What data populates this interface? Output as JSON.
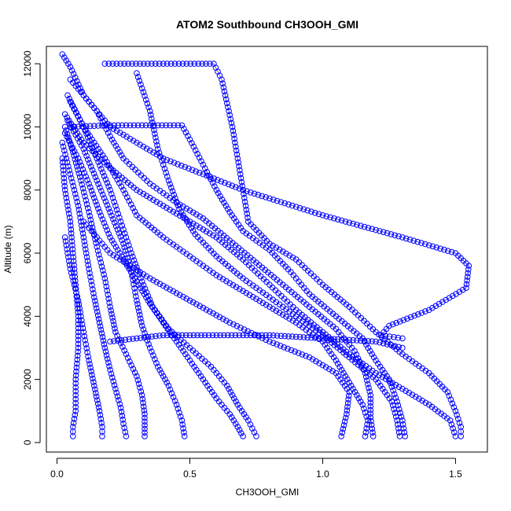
{
  "chart_data": {
    "type": "scatter",
    "title": "ATOM2 Southbound CH3OOH_GMI",
    "xlabel": "CH3OOH_GMI",
    "ylabel": "Altitude (m)",
    "xlim": [
      -0.04,
      1.62
    ],
    "ylim": [
      -300,
      12550
    ],
    "x_ticks": [
      0.0,
      0.5,
      1.0,
      1.5
    ],
    "x_tick_labels": [
      "0.0",
      "0.5",
      "1.0",
      "1.5"
    ],
    "y_ticks": [
      0,
      2000,
      4000,
      6000,
      8000,
      10000,
      12000
    ],
    "y_tick_labels": [
      "0",
      "2000",
      "4000",
      "6000",
      "8000",
      "10000",
      "12000"
    ],
    "marker": "open-circle",
    "series_color": "#0000ff",
    "grid": false,
    "legend": "none",
    "profiles": [
      {
        "points": [
          [
            0.02,
            12300
          ],
          [
            0.05,
            11900
          ],
          [
            0.1,
            11000
          ],
          [
            0.2,
            10000
          ],
          [
            0.4,
            9000
          ],
          [
            0.7,
            8000
          ],
          [
            1.0,
            7200
          ],
          [
            1.3,
            6500
          ],
          [
            1.5,
            6000
          ],
          [
            1.55,
            5600
          ],
          [
            1.54,
            4900
          ],
          [
            1.4,
            4200
          ],
          [
            1.25,
            3700
          ],
          [
            1.22,
            3400
          ],
          [
            1.3,
            3300
          ]
        ]
      },
      {
        "points": [
          [
            0.18,
            12000
          ],
          [
            0.4,
            12000
          ],
          [
            0.59,
            12000
          ],
          [
            0.62,
            11500
          ],
          [
            0.66,
            10000
          ],
          [
            0.68,
            9000
          ],
          [
            0.7,
            8000
          ],
          [
            0.72,
            7000
          ],
          [
            0.8,
            6300
          ],
          [
            0.9,
            5800
          ],
          [
            1.0,
            5000
          ],
          [
            1.1,
            4300
          ],
          [
            1.2,
            3500
          ],
          [
            1.3,
            2800
          ],
          [
            1.4,
            2200
          ],
          [
            1.47,
            1600
          ],
          [
            1.5,
            1000
          ],
          [
            1.52,
            500
          ],
          [
            1.52,
            200
          ]
        ]
      },
      {
        "points": [
          [
            0.05,
            10000
          ],
          [
            0.2,
            10050
          ],
          [
            0.47,
            10050
          ],
          [
            0.5,
            9600
          ],
          [
            0.55,
            8800
          ],
          [
            0.6,
            8000
          ],
          [
            0.65,
            7300
          ],
          [
            0.7,
            6700
          ],
          [
            0.8,
            6100
          ],
          [
            0.88,
            5400
          ],
          [
            0.95,
            4700
          ],
          [
            1.05,
            4000
          ],
          [
            1.15,
            3300
          ],
          [
            1.2,
            2600
          ],
          [
            1.25,
            2000
          ],
          [
            1.28,
            1300
          ],
          [
            1.3,
            700
          ],
          [
            1.31,
            200
          ]
        ]
      },
      {
        "points": [
          [
            0.03,
            10400
          ],
          [
            0.1,
            9500
          ],
          [
            0.2,
            8700
          ],
          [
            0.3,
            8000
          ],
          [
            0.4,
            7500
          ],
          [
            0.5,
            7000
          ],
          [
            0.6,
            6500
          ],
          [
            0.7,
            5800
          ],
          [
            0.8,
            5000
          ],
          [
            0.9,
            4200
          ],
          [
            1.0,
            3500
          ],
          [
            1.1,
            2800
          ],
          [
            1.2,
            2200
          ],
          [
            1.3,
            1700
          ],
          [
            1.4,
            1200
          ],
          [
            1.48,
            700
          ],
          [
            1.5,
            200
          ]
        ]
      },
      {
        "points": [
          [
            0.05,
            11500
          ],
          [
            0.15,
            10500
          ],
          [
            0.2,
            9700
          ],
          [
            0.25,
            9000
          ],
          [
            0.35,
            8200
          ],
          [
            0.45,
            7600
          ],
          [
            0.55,
            7100
          ],
          [
            0.65,
            6400
          ],
          [
            0.75,
            5700
          ],
          [
            0.85,
            5000
          ],
          [
            0.95,
            4300
          ],
          [
            1.05,
            3600
          ],
          [
            1.12,
            2900
          ],
          [
            1.16,
            2200
          ],
          [
            1.18,
            1500
          ],
          [
            1.18,
            800
          ],
          [
            1.19,
            200
          ]
        ]
      },
      {
        "points": [
          [
            0.04,
            11000
          ],
          [
            0.1,
            10000
          ],
          [
            0.18,
            9000
          ],
          [
            0.25,
            8000
          ],
          [
            0.3,
            7200
          ],
          [
            0.4,
            6500
          ],
          [
            0.5,
            5900
          ],
          [
            0.6,
            5300
          ],
          [
            0.7,
            4800
          ],
          [
            0.8,
            4300
          ],
          [
            0.9,
            3800
          ],
          [
            1.0,
            3200
          ],
          [
            1.05,
            2600
          ],
          [
            1.1,
            1900
          ],
          [
            1.15,
            1200
          ],
          [
            1.17,
            700
          ],
          [
            1.16,
            200
          ]
        ]
      },
      {
        "points": [
          [
            0.03,
            9800
          ],
          [
            0.08,
            9000
          ],
          [
            0.12,
            8200
          ],
          [
            0.16,
            7300
          ],
          [
            0.2,
            6500
          ],
          [
            0.25,
            5800
          ],
          [
            0.3,
            5100
          ],
          [
            0.35,
            4400
          ],
          [
            0.4,
            3800
          ],
          [
            0.45,
            3200
          ],
          [
            0.5,
            2600
          ],
          [
            0.55,
            2000
          ],
          [
            0.6,
            1400
          ],
          [
            0.65,
            900
          ],
          [
            0.68,
            500
          ],
          [
            0.7,
            200
          ]
        ]
      },
      {
        "points": [
          [
            0.02,
            9500
          ],
          [
            0.05,
            8500
          ],
          [
            0.08,
            7500
          ],
          [
            0.1,
            6500
          ],
          [
            0.12,
            5500
          ],
          [
            0.14,
            4600
          ],
          [
            0.16,
            3800
          ],
          [
            0.18,
            3000
          ],
          [
            0.2,
            2300
          ],
          [
            0.22,
            1700
          ],
          [
            0.24,
            1100
          ],
          [
            0.25,
            600
          ],
          [
            0.26,
            200
          ]
        ]
      },
      {
        "points": [
          [
            0.04,
            10200
          ],
          [
            0.1,
            9300
          ],
          [
            0.15,
            8300
          ],
          [
            0.2,
            7300
          ],
          [
            0.25,
            6300
          ],
          [
            0.28,
            5400
          ],
          [
            0.3,
            4500
          ],
          [
            0.32,
            3700
          ],
          [
            0.35,
            3000
          ],
          [
            0.38,
            2400
          ],
          [
            0.42,
            1800
          ],
          [
            0.45,
            1200
          ],
          [
            0.47,
            700
          ],
          [
            0.48,
            200
          ]
        ]
      },
      {
        "points": [
          [
            0.03,
            10000
          ],
          [
            0.06,
            9200
          ],
          [
            0.09,
            8300
          ],
          [
            0.12,
            7300
          ],
          [
            0.15,
            6200
          ],
          [
            0.18,
            5200
          ],
          [
            0.2,
            4300
          ],
          [
            0.22,
            3500
          ],
          [
            0.26,
            2800
          ],
          [
            0.3,
            2100
          ],
          [
            0.32,
            1500
          ],
          [
            0.33,
            900
          ],
          [
            0.33,
            200
          ]
        ]
      },
      {
        "points": [
          [
            0.02,
            9000
          ],
          [
            0.03,
            8000
          ],
          [
            0.05,
            7000
          ],
          [
            0.06,
            6000
          ],
          [
            0.07,
            5000
          ],
          [
            0.08,
            4000
          ],
          [
            0.08,
            3000
          ],
          [
            0.07,
            2000
          ],
          [
            0.07,
            1000
          ],
          [
            0.06,
            500
          ],
          [
            0.06,
            200
          ]
        ]
      },
      {
        "points": [
          [
            0.05,
            10800
          ],
          [
            0.1,
            10000
          ],
          [
            0.15,
            9000
          ],
          [
            0.2,
            8000
          ],
          [
            0.24,
            7000
          ],
          [
            0.28,
            6000
          ],
          [
            0.32,
            5100
          ],
          [
            0.36,
            4300
          ],
          [
            0.42,
            3600
          ],
          [
            0.5,
            3000
          ],
          [
            0.58,
            2400
          ],
          [
            0.64,
            1800
          ],
          [
            0.68,
            1200
          ],
          [
            0.72,
            700
          ],
          [
            0.75,
            200
          ]
        ]
      },
      {
        "points": [
          [
            0.3,
            11700
          ],
          [
            0.35,
            10500
          ],
          [
            0.38,
            9300
          ],
          [
            0.42,
            8300
          ],
          [
            0.46,
            7400
          ],
          [
            0.52,
            6600
          ],
          [
            0.6,
            5900
          ],
          [
            0.7,
            5200
          ],
          [
            0.8,
            4600
          ],
          [
            0.9,
            4000
          ],
          [
            1.0,
            3400
          ],
          [
            1.1,
            2700
          ],
          [
            1.2,
            2000
          ],
          [
            1.26,
            1300
          ],
          [
            1.28,
            700
          ],
          [
            1.29,
            200
          ]
        ]
      },
      {
        "points": [
          [
            0.1,
            7000
          ],
          [
            0.2,
            6000
          ],
          [
            0.35,
            5200
          ],
          [
            0.5,
            4500
          ],
          [
            0.65,
            3800
          ],
          [
            0.8,
            3200
          ],
          [
            0.95,
            2700
          ],
          [
            1.05,
            2200
          ],
          [
            1.1,
            1600
          ],
          [
            1.09,
            900
          ],
          [
            1.07,
            200
          ]
        ]
      },
      {
        "points": [
          [
            0.03,
            6500
          ],
          [
            0.05,
            5500
          ],
          [
            0.08,
            4500
          ],
          [
            0.1,
            3500
          ],
          [
            0.12,
            2600
          ],
          [
            0.14,
            1800
          ],
          [
            0.16,
            1000
          ],
          [
            0.17,
            500
          ],
          [
            0.17,
            200
          ]
        ]
      },
      {
        "points": [
          [
            0.2,
            3200
          ],
          [
            0.4,
            3400
          ],
          [
            0.6,
            3400
          ],
          [
            0.8,
            3400
          ],
          [
            1.0,
            3300
          ],
          [
            1.2,
            3200
          ],
          [
            1.3,
            3000
          ]
        ]
      }
    ]
  }
}
